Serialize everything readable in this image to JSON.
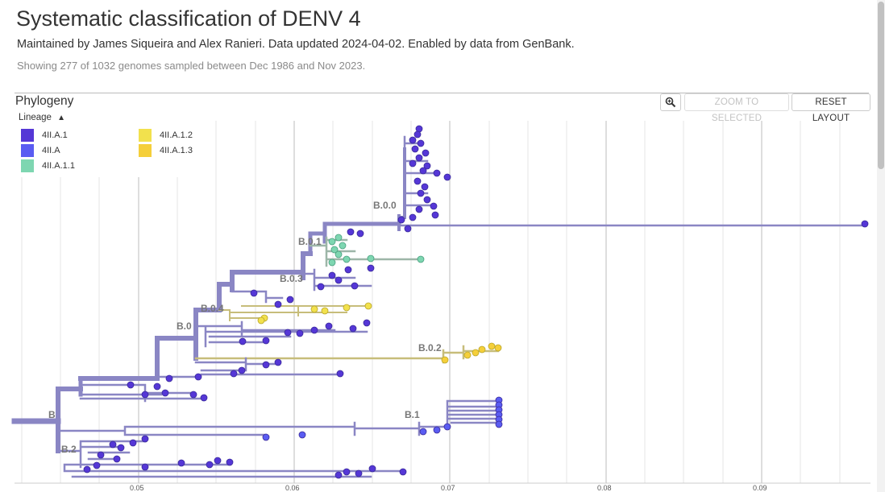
{
  "header": {
    "title": "Systematic classification of DENV 4",
    "byline": "Maintained by James Siqueira and Alex Ranieri. Data updated 2024-04-02. Enabled by data from GenBank.",
    "counts": "Showing 277 of 1032 genomes sampled between Dec 1986 and Nov 2023."
  },
  "panel": {
    "title": "Phylogeny",
    "zoom_in_icon": "magnifier-plus-icon",
    "zoom_selected_label": "ZOOM TO SELECTED",
    "reset_layout_label": "RESET LAYOUT"
  },
  "legend": {
    "toggle_label": "Lineage",
    "items": [
      {
        "label": "4II.A.1",
        "color": "#5537d6"
      },
      {
        "label": "4II.A",
        "color": "#5a5cf2"
      },
      {
        "label": "4II.A.1.1",
        "color": "#7ed6b1"
      },
      {
        "label": "4II.A.1.2",
        "color": "#f2e14d"
      },
      {
        "label": "4II.A.1.3",
        "color": "#f5cf3a"
      }
    ]
  },
  "tree": {
    "axis_ticks": [
      "0.05",
      "0.06",
      "0.07",
      "0.08",
      "0.09"
    ],
    "branch_color": "#8a86c4",
    "clade_labels": [
      "B.0.0",
      "B.0.1",
      "B.0.3",
      "B.0.4",
      "B.0",
      "B.0.2",
      "B",
      "B.1",
      "B.2"
    ]
  }
}
